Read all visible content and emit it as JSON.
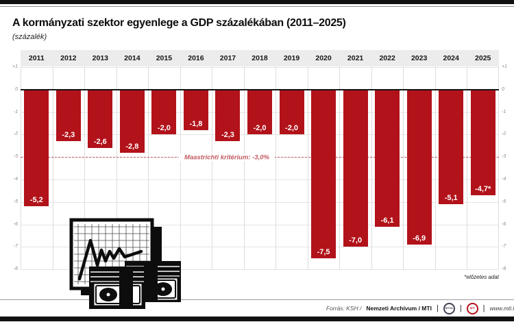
{
  "page": {
    "title": "A kormányzati szektor egyenlege a GDP százalékában (2011–2025)",
    "subtitle": "(százalék)",
    "footnote": "*előzetes adat"
  },
  "chart_data": {
    "type": "bar",
    "title": "A kormányzati szektor egyenlege a GDP százalékában (2011–2025)",
    "unit_note": "(százalék)",
    "categories": [
      "2011",
      "2012",
      "2013",
      "2014",
      "2015",
      "2016",
      "2017",
      "2018",
      "2019",
      "2020",
      "2021",
      "2022",
      "2023",
      "2024",
      "2025"
    ],
    "values": [
      -5.2,
      -2.3,
      -2.6,
      -2.8,
      -2.0,
      -1.8,
      -2.3,
      -2.0,
      -2.0,
      -7.5,
      -7.0,
      -6.1,
      -6.9,
      -5.1,
      -4.7
    ],
    "value_labels": [
      "-5,2",
      "-2,3",
      "-2,6",
      "-2,8",
      "-2,0",
      "-1,8",
      "-2,3",
      "-2,0",
      "-2,0",
      "-7,5",
      "-7,0",
      "-6,1",
      "-6,9",
      "-5,1",
      "-4,7*"
    ],
    "xlabel": "",
    "ylabel": "",
    "ylim": [
      -8,
      1
    ],
    "yticks": [
      1,
      0,
      -1,
      -2,
      -3,
      -4,
      -5,
      -6,
      -7,
      -8
    ],
    "ytick_labels": [
      "+1",
      "0",
      "-1",
      "-2",
      "-3",
      "-4",
      "-5",
      "-6",
      "-7",
      "-8"
    ],
    "grid": true,
    "legend": false,
    "bar_color": "#b2121a",
    "reference_line": {
      "value": -3.0,
      "label": "Maastrichti kritérium: -3,0%",
      "color": "#c2595f"
    },
    "footnote": "*előzetes adat"
  },
  "footer": {
    "source_prefix": "Forrás: KSH /",
    "source_main": "Nemzeti Archívum / MTI",
    "pipe": "|",
    "logo1": "MTVA",
    "logo2": "MTI",
    "website": "www.mti.hu"
  }
}
